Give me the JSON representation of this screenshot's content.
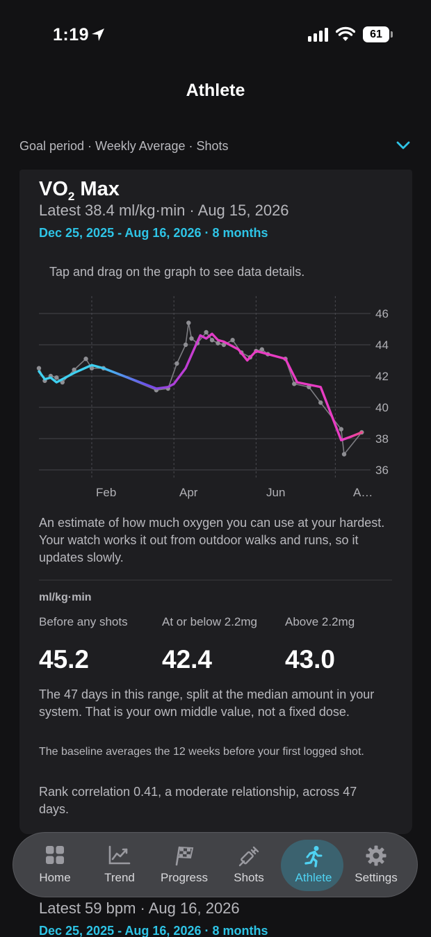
{
  "status": {
    "time": "1:19",
    "battery": "61"
  },
  "page": {
    "title": "Athlete"
  },
  "goal_bar": {
    "text": "Goal period · Weekly Average · Shots"
  },
  "card": {
    "title_main": "VO",
    "title_sub": "2",
    "title_rest": " Max",
    "latest": "Latest 38.4 ml/kg·min · Aug 15, 2026",
    "range": "Dec 25, 2025 - Aug 16, 2026 · 8 months",
    "hint": "Tap and drag on the graph to see data details.",
    "description": "An estimate of how much oxygen you can use at your hardest. Your watch works it out from outdoor walks and runs, so it updates slowly.",
    "units": "ml/kg·min",
    "stats": [
      {
        "label": "Before any shots",
        "value": "45.2"
      },
      {
        "label": "At or below 2.2mg",
        "value": "42.4"
      },
      {
        "label": "Above 2.2mg",
        "value": "43.0"
      }
    ],
    "para1": "The 47 days in this range, split at the median amount in your system. That is your own middle value, not a fixed dose.",
    "para2": "The baseline averages the 12 weeks before your first logged shot.",
    "para3": "Rank correlation 0.41, a moderate relationship, across 47 days."
  },
  "chart_data": {
    "type": "line",
    "x_ticks": [
      "Feb",
      "Apr",
      "Jun",
      "A…"
    ],
    "y_ticks": [
      46,
      44,
      42,
      40,
      38,
      36
    ],
    "ylim": [
      35.5,
      46.5
    ],
    "series": [
      {
        "values": [
          [
            0,
            42.3
          ],
          [
            2,
            41.8
          ],
          [
            4,
            41.9
          ],
          [
            6,
            41.6
          ],
          [
            8,
            41.8
          ],
          [
            12,
            42.2
          ],
          [
            18,
            42.7
          ],
          [
            22,
            42.5
          ],
          [
            40,
            41.2
          ],
          [
            44,
            41.3
          ],
          [
            46,
            41.5
          ],
          [
            50,
            42.5
          ],
          [
            54,
            44.2
          ],
          [
            55,
            44.6
          ],
          [
            57,
            44.4
          ],
          [
            59,
            44.7
          ],
          [
            61,
            44.3
          ],
          [
            63,
            44.2
          ],
          [
            65,
            44.0
          ],
          [
            68,
            43.7
          ],
          [
            71,
            43.0
          ],
          [
            74,
            43.6
          ],
          [
            76,
            43.5
          ],
          [
            80,
            43.3
          ],
          [
            84,
            43.1
          ],
          [
            88,
            41.6
          ],
          [
            96,
            41.3
          ],
          [
            103,
            37.9
          ],
          [
            106,
            38.1
          ],
          [
            110,
            38.4
          ]
        ]
      },
      {
        "values": [
          [
            0,
            42.5
          ],
          [
            2,
            41.7
          ],
          [
            4,
            42.0
          ],
          [
            6,
            41.9
          ],
          [
            8,
            41.6
          ],
          [
            12,
            42.4
          ],
          [
            16,
            43.1
          ],
          [
            18,
            42.5
          ],
          [
            22,
            42.5
          ],
          [
            40,
            41.1
          ],
          [
            44,
            41.2
          ],
          [
            47,
            42.8
          ],
          [
            50,
            44.0
          ],
          [
            51,
            45.4
          ],
          [
            52,
            44.4
          ],
          [
            54,
            44.1
          ],
          [
            57,
            44.8
          ],
          [
            59,
            44.3
          ],
          [
            61,
            44.1
          ],
          [
            63,
            44.0
          ],
          [
            66,
            44.3
          ],
          [
            69,
            43.5
          ],
          [
            72,
            43.2
          ],
          [
            74,
            43.6
          ],
          [
            76,
            43.7
          ],
          [
            78,
            43.4
          ],
          [
            84,
            43.1
          ],
          [
            87,
            41.5
          ],
          [
            92,
            41.3
          ],
          [
            96,
            40.3
          ],
          [
            103,
            38.6
          ],
          [
            104,
            37.0
          ],
          [
            110,
            38.4
          ]
        ]
      }
    ],
    "grid": true
  },
  "below": {
    "latest": "Latest 59 bpm · Aug 16, 2026",
    "range": "Dec 25, 2025 - Aug 16, 2026 · 8 months"
  },
  "tabs": [
    {
      "label": "Home",
      "icon": "home-grid-icon"
    },
    {
      "label": "Trend",
      "icon": "trend-chart-icon"
    },
    {
      "label": "Progress",
      "icon": "checkered-flag-icon"
    },
    {
      "label": "Shots",
      "icon": "syringe-icon"
    },
    {
      "label": "Athlete",
      "icon": "runner-icon"
    },
    {
      "label": "Settings",
      "icon": "gear-icon"
    }
  ],
  "colors": {
    "accent": "#2ec4e6",
    "pink": "#e83cc3",
    "purple": "#7a3ff0",
    "cyan": "#3fd0f0"
  }
}
